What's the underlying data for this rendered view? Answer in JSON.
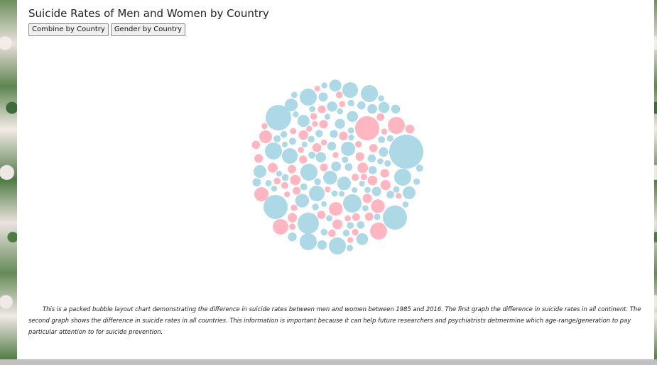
{
  "page": {
    "title": "Suicide Rates of Men and Women by Country",
    "buttons": {
      "combine": "Combine by Country",
      "gender": "Gender by Country"
    },
    "description": "This is a packed bubble layout chart demonstrating the difference in suicide rates between men and women between 1985 and 2016. The first graph the difference in suicide rates in all continent. The second graph shows the difference in suicide rates in all countries. This information is important because it can help future researchers and psychiatrists detmermine which age-range/generation to pay particular attention to for suicide prevention."
  },
  "colors": {
    "men": "#add8e6",
    "women": "#ffb6c1"
  }
}
